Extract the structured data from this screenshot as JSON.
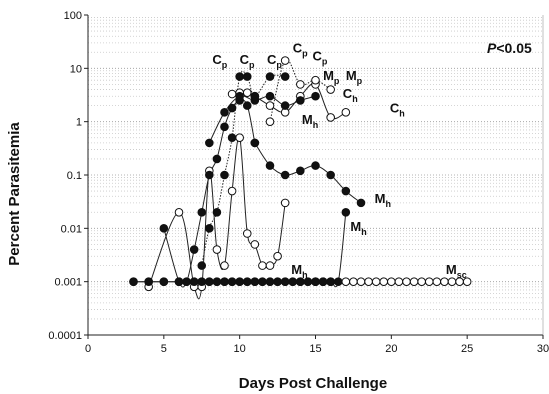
{
  "chart_data": {
    "type": "line",
    "title": "",
    "xlabel": "Days Post Challenge",
    "ylabel": "Percent Parasitemia",
    "xlim": [
      0,
      30
    ],
    "ylim": [
      0.0001,
      100
    ],
    "yscale": "log",
    "x_ticks": [
      "0",
      "5",
      "10",
      "15",
      "20",
      "25",
      "30"
    ],
    "y_ticks": [
      "0.0001",
      "0.001",
      "0.01",
      "0.1",
      "1",
      "10",
      "100"
    ],
    "grid": "horizontal dotted",
    "p_value": {
      "text": "<0.05",
      "symbol": "P"
    },
    "series": [
      {
        "marker": "open",
        "style": "solid",
        "x": [
          3,
          4,
          5,
          6,
          6.5,
          7,
          7.5,
          8,
          8.5,
          9,
          9.5,
          10,
          10.5,
          11,
          11.5,
          12,
          12.5,
          13,
          13.5,
          14,
          14.5,
          15,
          15.5,
          16
        ],
        "y": [
          0.001,
          0.001,
          0.001,
          0.001,
          0.001,
          0.001,
          0.001,
          0.001,
          0.001,
          0.001,
          0.001,
          0.001,
          0.001,
          0.001,
          0.001,
          0.001,
          0.001,
          0.001,
          0.001,
          0.001,
          0.001,
          0.001,
          0.001,
          0.001
        ]
      },
      {
        "marker": "open",
        "style": "solid",
        "x": [
          4,
          6,
          7,
          7.5,
          8,
          8.5,
          9,
          9.5,
          10,
          10.5,
          11,
          11.5,
          12,
          12.5,
          13
        ],
        "y": [
          0.0008,
          0.02,
          0.0008,
          0.0008,
          0.12,
          0.004,
          0.002,
          0.05,
          0.5,
          0.008,
          0.005,
          0.002,
          0.002,
          0.003,
          0.03
        ]
      },
      {
        "marker": "filled",
        "style": "solid",
        "x": [
          5,
          6,
          6.5,
          7,
          7.5,
          8,
          8.5,
          9,
          9.5,
          10,
          10.5,
          11
        ],
        "y": [
          0.01,
          0.001,
          0.001,
          0.004,
          0.02,
          0.1,
          0.2,
          0.8,
          1.8,
          2.5,
          2.0,
          0.4
        ]
      },
      {
        "marker": "filled",
        "style": "solid",
        "x": [
          11,
          12,
          13,
          14,
          15,
          16,
          17,
          18
        ],
        "y": [
          0.4,
          0.15,
          0.1,
          0.12,
          0.15,
          0.1,
          0.05,
          0.03
        ]
      },
      {
        "marker": "open",
        "style": "solid",
        "x": [
          9.5,
          10,
          10.5,
          11,
          12,
          13,
          14,
          15,
          16,
          17
        ],
        "y": [
          3.3,
          3.5,
          3.5,
          3.0,
          2.0,
          1.5,
          3.0,
          5.0,
          1.2,
          1.5
        ]
      },
      {
        "marker": "filled",
        "style": "solid",
        "x": [
          8,
          9,
          10,
          11,
          12,
          13,
          14,
          15
        ],
        "y": [
          0.4,
          1.5,
          3.0,
          2.5,
          3.0,
          2.0,
          2.5,
          3.0
        ]
      },
      {
        "marker": "filled",
        "style": "dotted",
        "x": [
          7.5,
          8,
          8.5,
          9,
          9.5,
          10,
          10.5,
          11,
          12,
          13
        ],
        "y": [
          0.002,
          0.01,
          0.02,
          0.1,
          0.5,
          7.0,
          7.0,
          3.0,
          7.0,
          7.0
        ]
      },
      {
        "marker": "open",
        "style": "dotted",
        "x": [
          12,
          13,
          14,
          15,
          16
        ],
        "y": [
          1.0,
          14.0,
          5.0,
          6.0,
          4.0
        ]
      },
      {
        "marker": "filled",
        "style": "solid",
        "x": [
          14,
          15,
          15.5,
          16
        ],
        "y": [
          0.001,
          0.001,
          0.001,
          0.001
        ]
      },
      {
        "marker": "filled",
        "style": "solid",
        "x": [
          15.5,
          16,
          16.5,
          17
        ],
        "y": [
          0.001,
          0.001,
          0.001,
          0.02
        ]
      },
      {
        "marker": "open",
        "style": "solid",
        "x": [
          17,
          17.5,
          18,
          18.5,
          19,
          19.5,
          20,
          20.5,
          21,
          21.5,
          22,
          22.5,
          23,
          23.5,
          24,
          24.5,
          25
        ],
        "y": [
          0.001,
          0.001,
          0.001,
          0.001,
          0.001,
          0.001,
          0.001,
          0.001,
          0.001,
          0.001,
          0.001,
          0.001,
          0.001,
          0.001,
          0.001,
          0.001,
          0.001
        ]
      },
      {
        "marker": "filled",
        "style": "solid",
        "x": [
          3,
          4,
          5,
          6,
          7,
          7.5,
          8,
          8.5,
          9,
          9.5,
          10,
          10.5,
          11,
          11.5,
          12,
          12.5,
          13,
          13.5,
          14,
          14.5,
          15
        ],
        "y": [
          0.001,
          0.001,
          0.001,
          0.001,
          0.001,
          0.001,
          0.001,
          0.001,
          0.001,
          0.001,
          0.001,
          0.001,
          0.001,
          0.001,
          0.001,
          0.001,
          0.001,
          0.001,
          0.001,
          0.001,
          0.001
        ]
      }
    ],
    "annotations": [
      {
        "main": "C",
        "sub": "p",
        "x": 8.2,
        "y": 12
      },
      {
        "main": "C",
        "sub": "p",
        "x": 10.0,
        "y": 12
      },
      {
        "main": "C",
        "sub": "p",
        "x": 11.8,
        "y": 12
      },
      {
        "main": "C",
        "sub": "p",
        "x": 13.5,
        "y": 20
      },
      {
        "main": "C",
        "sub": "p",
        "x": 14.8,
        "y": 14
      },
      {
        "main": "M",
        "sub": "p",
        "x": 15.5,
        "y": 6
      },
      {
        "main": "M",
        "sub": "p",
        "x": 17.0,
        "y": 6
      },
      {
        "main": "C",
        "sub": "h",
        "x": 16.8,
        "y": 2.8
      },
      {
        "main": "C",
        "sub": "h",
        "x": 19.9,
        "y": 1.5
      },
      {
        "main": "M",
        "sub": "h",
        "x": 14.1,
        "y": 0.9
      },
      {
        "main": "M",
        "sub": "h",
        "x": 18.9,
        "y": 0.03
      },
      {
        "main": "M",
        "sub": "h",
        "x": 17.3,
        "y": 0.009
      },
      {
        "main": "M",
        "sub": "h",
        "x": 13.4,
        "y": 0.0014
      },
      {
        "main": "M",
        "sub": "sc",
        "x": 23.6,
        "y": 0.0014
      }
    ]
  }
}
